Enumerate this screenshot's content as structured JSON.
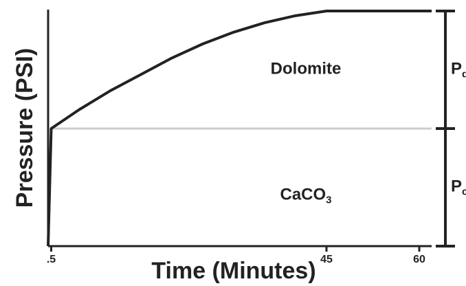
{
  "chart_data": {
    "type": "line",
    "x_label": "Time (Minutes)",
    "y_label": "Pressure (PSI)",
    "x": [
      0,
      0.5,
      5,
      10,
      15,
      20,
      25,
      30,
      35,
      40,
      45,
      62
    ],
    "values": [
      0,
      50,
      58,
      66,
      73,
      80,
      86,
      91,
      95,
      98,
      100,
      100
    ],
    "color": "#222222",
    "reference_line": 50,
    "reference_color": "#cccccc",
    "xlim": [
      0,
      62
    ],
    "ylim": [
      0,
      100
    ],
    "xticks": [
      {
        "value": 0.5,
        "label": ".5"
      },
      45,
      60
    ],
    "regions": [
      {
        "text": "Dolomite",
        "sub": ""
      },
      {
        "text": "CaCO",
        "sub": "3"
      }
    ],
    "bracket_labels": [
      {
        "text": "P",
        "sub": "d"
      },
      {
        "text": "P",
        "sub": "c"
      }
    ]
  }
}
